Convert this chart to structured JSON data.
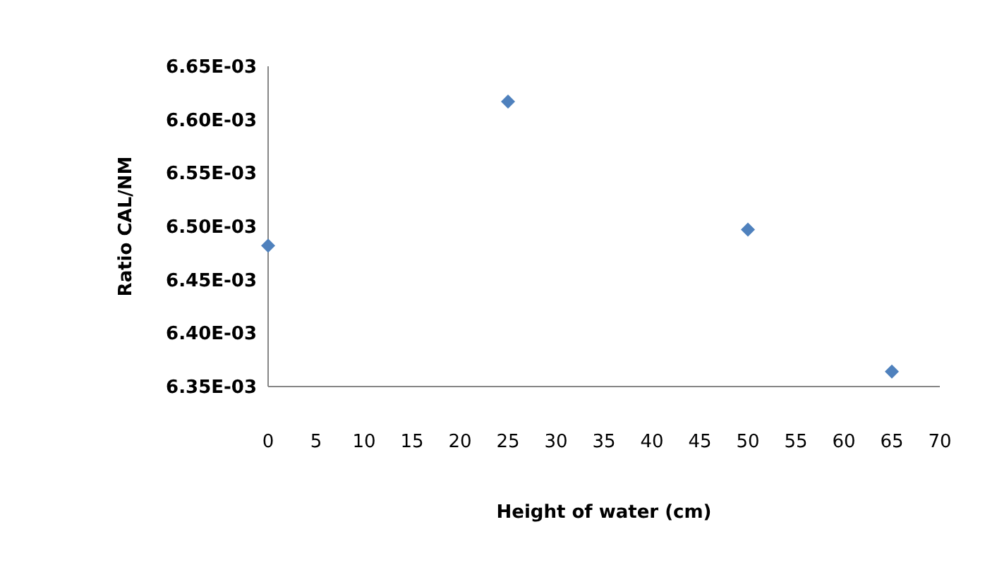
{
  "chart_data": {
    "type": "scatter",
    "xlabel": "Height of water (cm)",
    "ylabel": "Ratio CAL/NM",
    "x": [
      0,
      25,
      50,
      65
    ],
    "series": [
      {
        "color": "#4f81bd",
        "values": [
          0.006482,
          0.006617,
          0.006497,
          0.006364
        ]
      }
    ],
    "marker": "diamond",
    "xlim": [
      0,
      70
    ],
    "xticks": [
      0,
      5,
      10,
      15,
      20,
      25,
      30,
      35,
      40,
      45,
      50,
      55,
      60,
      65,
      70
    ],
    "ylim": [
      0.00635,
      0.00665
    ],
    "yticks": [
      {
        "value": 0.00635,
        "label": "6.35E-03"
      },
      {
        "value": 0.0064,
        "label": "6.40E-03"
      },
      {
        "value": 0.00645,
        "label": "6.45E-03"
      },
      {
        "value": 0.0065,
        "label": "6.50E-03"
      },
      {
        "value": 0.00655,
        "label": "6.55E-03"
      },
      {
        "value": 0.0066,
        "label": "6.60E-03"
      },
      {
        "value": 0.00665,
        "label": "6.65E-03"
      }
    ],
    "grid": false
  }
}
